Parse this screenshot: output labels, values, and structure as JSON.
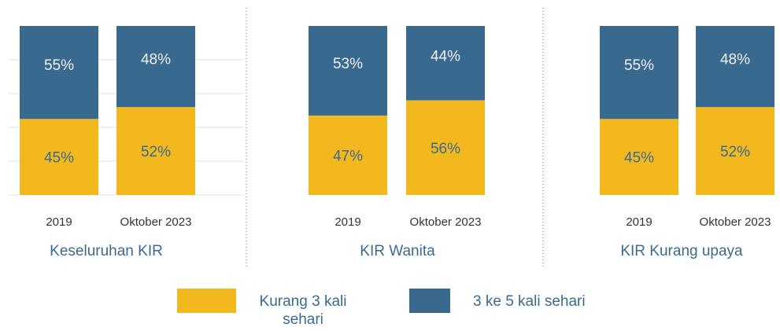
{
  "chart_data": [
    {
      "type": "bar",
      "stacked": true,
      "title": "Keseluruhan KIR",
      "categories": [
        "2019",
        "Oktober 2023"
      ],
      "ylim": [
        0,
        100
      ],
      "yticks": [
        0,
        20,
        40,
        60,
        80
      ],
      "grid": true,
      "series": [
        {
          "name": "Kurang 3 kali sehari",
          "color": "#f2b81e",
          "values": [
            45,
            52
          ],
          "value_labels": [
            "45%",
            "52%"
          ]
        },
        {
          "name": "3 ke 5 kali sehari",
          "color": "#3a698f",
          "values": [
            55,
            48
          ],
          "value_labels": [
            "55%",
            "48%"
          ]
        }
      ]
    },
    {
      "type": "bar",
      "stacked": true,
      "title": "KIR Wanita",
      "categories": [
        "2019",
        "Oktober 2023"
      ],
      "ylim": [
        0,
        100
      ],
      "series": [
        {
          "name": "Kurang 3 kali sehari",
          "color": "#f2b81e",
          "values": [
            47,
            56
          ],
          "value_labels": [
            "47%",
            "56%"
          ]
        },
        {
          "name": "3 ke 5 kali sehari",
          "color": "#3a698f",
          "values": [
            53,
            44
          ],
          "value_labels": [
            "53%",
            "44%"
          ]
        }
      ]
    },
    {
      "type": "bar",
      "stacked": true,
      "title": "KIR Kurang upaya",
      "categories": [
        "2019",
        "Oktober 2023"
      ],
      "ylim": [
        0,
        100
      ],
      "series": [
        {
          "name": "Kurang 3 kali sehari",
          "color": "#f2b81e",
          "values": [
            45,
            52
          ],
          "value_labels": [
            "45%",
            "52%"
          ]
        },
        {
          "name": "3 ke 5 kali sehari",
          "color": "#3a698f",
          "values": [
            55,
            48
          ],
          "value_labels": [
            "55%",
            "48%"
          ]
        }
      ]
    }
  ]
}
